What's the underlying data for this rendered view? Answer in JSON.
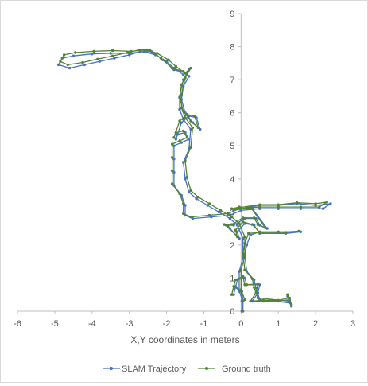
{
  "chart_data": {
    "type": "scatter",
    "title": "",
    "xlabel": "X,Y coordinates in meters",
    "ylabel": "",
    "xlim": [
      -6,
      3
    ],
    "ylim": [
      0,
      9
    ],
    "x_ticks": [
      "-6",
      "-5",
      "-4",
      "-3",
      "-2",
      "-1",
      "0",
      "1",
      "2",
      "3"
    ],
    "y_ticks": [
      "0",
      "1",
      "2",
      "3",
      "4",
      "5",
      "6",
      "7",
      "8",
      "9"
    ],
    "grid": false,
    "legend_position": "bottom",
    "series": [
      {
        "name": "SLAM Trajectory",
        "color": "#4472C4",
        "points": [
          [
            0.05,
            0.0
          ],
          [
            0.05,
            0.3
          ],
          [
            0.02,
            0.6
          ],
          [
            -0.15,
            0.75
          ],
          [
            -0.2,
            0.5
          ],
          [
            -0.1,
            0.95
          ],
          [
            0.1,
            1.0
          ],
          [
            0.15,
            0.8
          ],
          [
            0.5,
            0.8
          ],
          [
            0.45,
            0.55
          ],
          [
            0.3,
            0.3
          ],
          [
            0.6,
            0.3
          ],
          [
            1.0,
            0.3
          ],
          [
            1.3,
            0.35
          ],
          [
            1.35,
            0.15
          ],
          [
            1.25,
            0.45
          ],
          [
            1.3,
            0.25
          ],
          [
            0.5,
            0.35
          ],
          [
            0.4,
            0.7
          ],
          [
            0.35,
            0.95
          ],
          [
            0.15,
            1.2
          ],
          [
            0.1,
            1.7
          ],
          [
            0.15,
            2.0
          ],
          [
            0.25,
            2.3
          ],
          [
            0.5,
            2.4
          ],
          [
            1.0,
            2.4
          ],
          [
            1.6,
            2.4
          ],
          [
            1.2,
            2.35
          ],
          [
            0.5,
            2.35
          ],
          [
            0.35,
            2.6
          ],
          [
            0.1,
            2.65
          ],
          [
            -0.1,
            2.4
          ],
          [
            -0.05,
            2.2
          ],
          [
            -0.3,
            2.5
          ],
          [
            -0.4,
            2.6
          ],
          [
            -0.2,
            2.6
          ],
          [
            0.1,
            2.8
          ],
          [
            0.4,
            2.8
          ],
          [
            0.5,
            2.6
          ],
          [
            0.7,
            2.5
          ],
          [
            0.3,
            3.1
          ],
          [
            0.0,
            3.1
          ],
          [
            -0.2,
            3.05
          ],
          [
            0.5,
            3.2
          ],
          [
            1.0,
            3.2
          ],
          [
            1.5,
            3.25
          ],
          [
            2.0,
            3.2
          ],
          [
            2.4,
            3.25
          ],
          [
            2.2,
            3.1
          ],
          [
            1.6,
            3.1
          ],
          [
            1.0,
            3.1
          ],
          [
            0.5,
            3.1
          ],
          [
            0.0,
            3.05
          ],
          [
            -0.3,
            2.9
          ],
          [
            -0.8,
            2.85
          ],
          [
            -1.3,
            2.8
          ],
          [
            -1.5,
            2.9
          ],
          [
            -1.5,
            3.2
          ],
          [
            -1.6,
            3.5
          ],
          [
            -1.8,
            3.8
          ],
          [
            -1.8,
            4.2
          ],
          [
            -1.8,
            4.6
          ],
          [
            -1.8,
            5.0
          ],
          [
            -1.6,
            5.1
          ],
          [
            -1.4,
            5.2
          ],
          [
            -1.5,
            5.4
          ],
          [
            -1.7,
            5.35
          ],
          [
            -1.75,
            5.2
          ],
          [
            -1.6,
            5.7
          ],
          [
            -1.4,
            5.9
          ],
          [
            -1.2,
            5.85
          ],
          [
            -1.1,
            5.5
          ],
          [
            -1.3,
            5.7
          ],
          [
            -1.5,
            6.0
          ],
          [
            -1.6,
            6.4
          ],
          [
            -1.55,
            6.8
          ],
          [
            -1.4,
            7.1
          ],
          [
            -1.5,
            7.2
          ],
          [
            -1.8,
            7.3
          ],
          [
            -2.1,
            7.6
          ],
          [
            -2.4,
            7.85
          ],
          [
            -2.7,
            7.85
          ],
          [
            -3.0,
            7.75
          ],
          [
            -3.4,
            7.65
          ],
          [
            -3.8,
            7.55
          ],
          [
            -4.2,
            7.45
          ],
          [
            -4.6,
            7.35
          ],
          [
            -4.9,
            7.45
          ],
          [
            -4.8,
            7.65
          ],
          [
            -4.5,
            7.72
          ],
          [
            -4.0,
            7.78
          ],
          [
            -3.5,
            7.8
          ],
          [
            -3.0,
            7.8
          ],
          [
            -2.6,
            7.85
          ],
          [
            -2.3,
            7.75
          ],
          [
            -2.0,
            7.55
          ],
          [
            -1.8,
            7.35
          ],
          [
            -1.55,
            7.15
          ],
          [
            -1.4,
            7.3
          ],
          [
            -1.55,
            7.0
          ],
          [
            -1.65,
            6.5
          ],
          [
            -1.65,
            6.1
          ],
          [
            -1.55,
            5.8
          ],
          [
            -1.35,
            5.5
          ],
          [
            -1.4,
            4.9
          ],
          [
            -1.55,
            4.5
          ],
          [
            -1.5,
            4.0
          ],
          [
            -1.4,
            3.6
          ],
          [
            -1.2,
            3.4
          ],
          [
            -0.9,
            3.2
          ],
          [
            -0.6,
            3.0
          ],
          [
            -0.3,
            2.8
          ],
          [
            -0.1,
            2.6
          ],
          [
            0.05,
            2.2
          ],
          [
            0.05,
            1.6
          ],
          [
            -0.05,
            1.2
          ],
          [
            -0.05,
            0.6
          ],
          [
            0.05,
            0.3
          ]
        ]
      },
      {
        "name": "Ground truth",
        "color": "#548235",
        "points": [
          [
            0.02,
            0.0
          ],
          [
            0.02,
            0.3
          ],
          [
            0.0,
            0.6
          ],
          [
            -0.2,
            0.75
          ],
          [
            -0.25,
            0.5
          ],
          [
            -0.15,
            0.95
          ],
          [
            0.05,
            1.05
          ],
          [
            0.1,
            0.8
          ],
          [
            0.45,
            0.82
          ],
          [
            0.4,
            0.55
          ],
          [
            0.25,
            0.3
          ],
          [
            0.6,
            0.33
          ],
          [
            1.0,
            0.33
          ],
          [
            1.3,
            0.4
          ],
          [
            1.35,
            0.2
          ],
          [
            1.25,
            0.5
          ],
          [
            1.3,
            0.3
          ],
          [
            0.45,
            0.4
          ],
          [
            0.35,
            0.72
          ],
          [
            0.3,
            0.98
          ],
          [
            0.1,
            1.25
          ],
          [
            0.05,
            1.75
          ],
          [
            0.1,
            2.05
          ],
          [
            0.2,
            2.35
          ],
          [
            0.5,
            2.38
          ],
          [
            1.0,
            2.38
          ],
          [
            1.55,
            2.42
          ],
          [
            1.2,
            2.38
          ],
          [
            0.5,
            2.38
          ],
          [
            0.3,
            2.62
          ],
          [
            0.05,
            2.7
          ],
          [
            -0.15,
            2.45
          ],
          [
            -0.1,
            2.25
          ],
          [
            -0.35,
            2.55
          ],
          [
            -0.45,
            2.62
          ],
          [
            -0.25,
            2.62
          ],
          [
            0.05,
            2.82
          ],
          [
            0.35,
            2.82
          ],
          [
            0.45,
            2.62
          ],
          [
            0.65,
            2.52
          ],
          [
            0.25,
            3.15
          ],
          [
            -0.05,
            3.15
          ],
          [
            -0.25,
            3.1
          ],
          [
            0.5,
            3.22
          ],
          [
            1.0,
            3.22
          ],
          [
            1.5,
            3.28
          ],
          [
            2.0,
            3.25
          ],
          [
            2.3,
            3.3
          ],
          [
            2.1,
            3.15
          ],
          [
            1.6,
            3.15
          ],
          [
            1.0,
            3.15
          ],
          [
            0.5,
            3.15
          ],
          [
            -0.05,
            3.1
          ],
          [
            -0.35,
            2.95
          ],
          [
            -0.85,
            2.9
          ],
          [
            -1.35,
            2.85
          ],
          [
            -1.55,
            2.95
          ],
          [
            -1.55,
            3.25
          ],
          [
            -1.65,
            3.55
          ],
          [
            -1.85,
            3.85
          ],
          [
            -1.85,
            4.25
          ],
          [
            -1.85,
            4.65
          ],
          [
            -1.85,
            5.05
          ],
          [
            -1.65,
            5.15
          ],
          [
            -1.45,
            5.25
          ],
          [
            -1.55,
            5.45
          ],
          [
            -1.75,
            5.4
          ],
          [
            -1.8,
            5.25
          ],
          [
            -1.65,
            5.75
          ],
          [
            -1.45,
            5.95
          ],
          [
            -1.25,
            5.9
          ],
          [
            -1.15,
            5.55
          ],
          [
            -1.35,
            5.75
          ],
          [
            -1.55,
            6.05
          ],
          [
            -1.65,
            6.45
          ],
          [
            -1.6,
            6.85
          ],
          [
            -1.45,
            7.15
          ],
          [
            -1.55,
            7.25
          ],
          [
            -1.85,
            7.35
          ],
          [
            -2.15,
            7.65
          ],
          [
            -2.45,
            7.9
          ],
          [
            -2.75,
            7.9
          ],
          [
            -3.05,
            7.82
          ],
          [
            -3.45,
            7.72
          ],
          [
            -3.85,
            7.62
          ],
          [
            -4.25,
            7.52
          ],
          [
            -4.65,
            7.45
          ],
          [
            -4.85,
            7.55
          ],
          [
            -4.75,
            7.75
          ],
          [
            -4.45,
            7.82
          ],
          [
            -3.95,
            7.86
          ],
          [
            -3.45,
            7.88
          ],
          [
            -2.95,
            7.86
          ],
          [
            -2.55,
            7.9
          ],
          [
            -2.25,
            7.8
          ],
          [
            -1.95,
            7.6
          ],
          [
            -1.75,
            7.4
          ],
          [
            -1.5,
            7.2
          ],
          [
            -1.35,
            7.35
          ],
          [
            -1.5,
            7.05
          ],
          [
            -1.6,
            6.55
          ],
          [
            -1.6,
            6.15
          ],
          [
            -1.5,
            5.85
          ],
          [
            -1.3,
            5.55
          ],
          [
            -1.35,
            4.95
          ],
          [
            -1.5,
            4.55
          ],
          [
            -1.45,
            4.05
          ],
          [
            -1.35,
            3.65
          ],
          [
            -1.15,
            3.45
          ],
          [
            -0.85,
            3.25
          ],
          [
            -0.55,
            3.05
          ],
          [
            -0.25,
            2.85
          ],
          [
            -0.05,
            2.65
          ],
          [
            0.1,
            2.25
          ],
          [
            0.1,
            1.65
          ],
          [
            0.0,
            1.25
          ],
          [
            0.0,
            0.65
          ],
          [
            0.1,
            0.35
          ]
        ]
      }
    ]
  }
}
